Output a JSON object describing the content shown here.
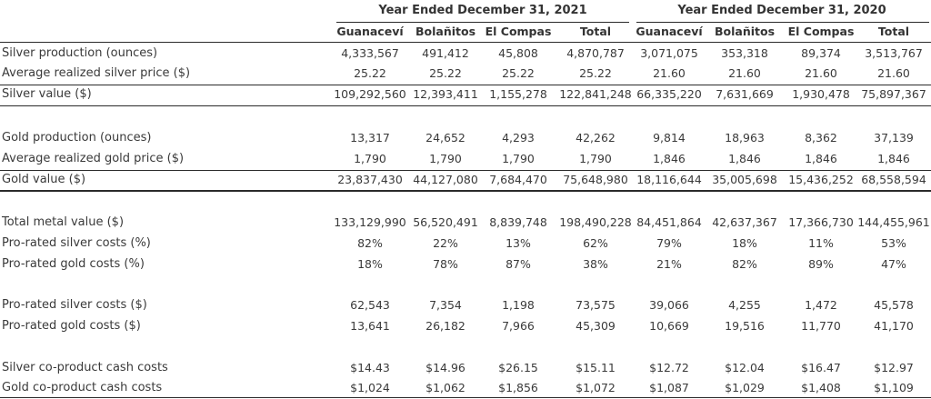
{
  "header": {
    "group_2021": "Year Ended December 31, 2021",
    "group_2020": "Year Ended December 31, 2020",
    "columns": [
      "Guanaceví",
      "Bolañitos",
      "El Compas",
      "Total",
      "Guanaceví",
      "Bolañitos",
      "El Compas",
      "Total"
    ]
  },
  "rows": [
    {
      "label": "Silver production (ounces)",
      "values": [
        "4,333,567",
        "491,412",
        "45,808",
        "4,870,787",
        "3,071,075",
        "353,318",
        "89,374",
        "3,513,767"
      ]
    },
    {
      "label": "Average realized silver price ($)",
      "values": [
        "25.22",
        "25.22",
        "25.22",
        "25.22",
        "21.60",
        "21.60",
        "21.60",
        "21.60"
      ]
    },
    {
      "label": "Silver value ($)",
      "values": [
        "109,292,560",
        "12,393,411",
        "1,155,278",
        "122,841,248",
        "66,335,220",
        "7,631,669",
        "1,930,478",
        "75,897,367"
      ]
    },
    {
      "label": "Gold production (ounces)",
      "values": [
        "13,317",
        "24,652",
        "4,293",
        "42,262",
        "9,814",
        "18,963",
        "8,362",
        "37,139"
      ]
    },
    {
      "label": "Average realized gold price ($)",
      "values": [
        "1,790",
        "1,790",
        "1,790",
        "1,790",
        "1,846",
        "1,846",
        "1,846",
        "1,846"
      ]
    },
    {
      "label": "Gold value ($)",
      "values": [
        "23,837,430",
        "44,127,080",
        "7,684,470",
        "75,648,980",
        "18,116,644",
        "35,005,698",
        "15,436,252",
        "68,558,594"
      ]
    },
    {
      "label": "Total metal value ($)",
      "values": [
        "133,129,990",
        "56,520,491",
        "8,839,748",
        "198,490,228",
        "84,451,864",
        "42,637,367",
        "17,366,730",
        "144,455,961"
      ]
    },
    {
      "label": "Pro-rated silver costs (%)",
      "values": [
        "82%",
        "22%",
        "13%",
        "62%",
        "79%",
        "18%",
        "11%",
        "53%"
      ]
    },
    {
      "label": "Pro-rated gold costs (%)",
      "values": [
        "18%",
        "78%",
        "87%",
        "38%",
        "21%",
        "82%",
        "89%",
        "47%"
      ]
    },
    {
      "label": "Pro-rated silver costs ($)",
      "values": [
        "62,543",
        "7,354",
        "1,198",
        "73,575",
        "39,066",
        "4,255",
        "1,472",
        "45,578"
      ]
    },
    {
      "label": "Pro-rated gold costs ($)",
      "values": [
        "13,641",
        "26,182",
        "7,966",
        "45,309",
        "10,669",
        "19,516",
        "11,770",
        "41,170"
      ]
    },
    {
      "label": "Silver co-product cash costs",
      "values": [
        "$14.43",
        "$14.96",
        "$26.15",
        "$15.11",
        "$12.72",
        "$12.04",
        "$16.47",
        "$12.97"
      ]
    },
    {
      "label": "Gold co-product cash costs",
      "values": [
        "$1,024",
        "$1,062",
        "$1,856",
        "$1,072",
        "$1,087",
        "$1,029",
        "$1,408",
        "$1,109"
      ]
    }
  ]
}
